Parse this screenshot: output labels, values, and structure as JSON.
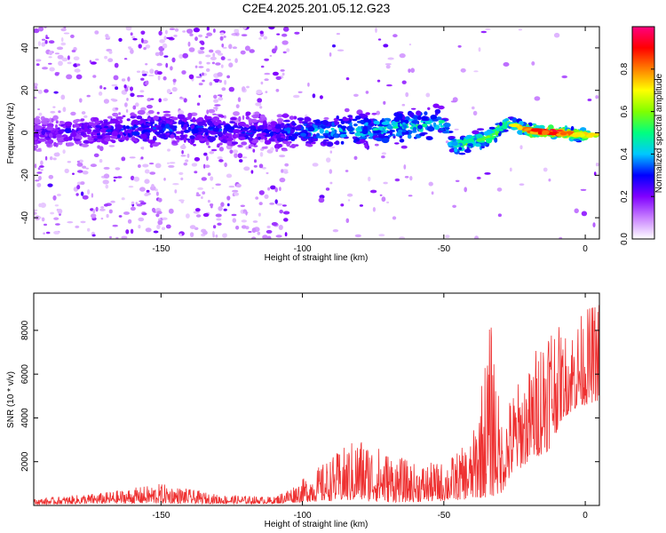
{
  "title": "C2E4.2025.201.05.12.G23",
  "chart_data": [
    {
      "type": "heatmap",
      "xlabel": "Height of straight line (km)",
      "ylabel": "Frequency (Hz)",
      "xlim": [
        -195,
        5
      ],
      "ylim": [
        -50,
        50
      ],
      "xticks": [
        -150,
        -100,
        -50,
        0
      ],
      "yticks": [
        -40,
        -20,
        0,
        20,
        40
      ],
      "colorbar": {
        "label": "Normalized spectral amplitude",
        "range": [
          0,
          1
        ],
        "ticks": [
          0.0,
          0.2,
          0.4,
          0.6,
          0.8
        ],
        "colormap": [
          "#ffffff",
          "#c880ff",
          "#8000ff",
          "#0000ff",
          "#00c8ff",
          "#00ff80",
          "#80ff00",
          "#ffff00",
          "#ff8000",
          "#ff0000",
          "#ff0080"
        ]
      },
      "ridge": [
        {
          "x": -190,
          "freq": 0,
          "amp": 0.25
        },
        {
          "x": -150,
          "freq": 2,
          "amp": 0.35
        },
        {
          "x": -110,
          "freq": 0,
          "amp": 0.3
        },
        {
          "x": -100,
          "freq": 1,
          "amp": 0.4
        },
        {
          "x": -80,
          "freq": 1,
          "amp": 0.45
        },
        {
          "x": -60,
          "freq": 3,
          "amp": 0.5
        },
        {
          "x": -50,
          "freq": 5,
          "amp": 0.45
        },
        {
          "x": -47,
          "freq": -6,
          "amp": 0.55
        },
        {
          "x": -35,
          "freq": -3,
          "amp": 0.6
        },
        {
          "x": -27,
          "freq": 5,
          "amp": 0.65
        },
        {
          "x": -20,
          "freq": 1,
          "amp": 0.85
        },
        {
          "x": -10,
          "freq": 0,
          "amp": 0.95
        },
        {
          "x": 0,
          "freq": -1,
          "amp": 0.7
        }
      ]
    },
    {
      "type": "line",
      "xlabel": "Height of straight line (km)",
      "ylabel": "SNR (10 * v/v)",
      "xlim": [
        -195,
        5
      ],
      "ylim": [
        0,
        9700
      ],
      "xticks": [
        -150,
        -100,
        -50,
        0
      ],
      "yticks": [
        2000,
        4000,
        6000,
        8000
      ],
      "color": "#ee3030",
      "envelope": [
        {
          "x": -195,
          "low": 50,
          "high": 300
        },
        {
          "x": -170,
          "low": 80,
          "high": 600
        },
        {
          "x": -150,
          "low": 100,
          "high": 1000
        },
        {
          "x": -130,
          "low": 80,
          "high": 500
        },
        {
          "x": -110,
          "low": 80,
          "high": 400
        },
        {
          "x": -100,
          "low": 150,
          "high": 1200
        },
        {
          "x": -90,
          "low": 200,
          "high": 2200
        },
        {
          "x": -80,
          "low": 200,
          "high": 3200
        },
        {
          "x": -70,
          "low": 150,
          "high": 2500
        },
        {
          "x": -60,
          "low": 150,
          "high": 1900
        },
        {
          "x": -50,
          "low": 200,
          "high": 2000
        },
        {
          "x": -40,
          "low": 300,
          "high": 3000
        },
        {
          "x": -33,
          "low": 400,
          "high": 8900
        },
        {
          "x": -30,
          "low": 500,
          "high": 4000
        },
        {
          "x": -25,
          "low": 1500,
          "high": 5500
        },
        {
          "x": -20,
          "low": 2000,
          "high": 6200
        },
        {
          "x": -13,
          "low": 2500,
          "high": 9300
        },
        {
          "x": -8,
          "low": 4000,
          "high": 7800
        },
        {
          "x": -2,
          "low": 4500,
          "high": 8700
        },
        {
          "x": 5,
          "low": 4800,
          "high": 9600
        }
      ]
    }
  ]
}
